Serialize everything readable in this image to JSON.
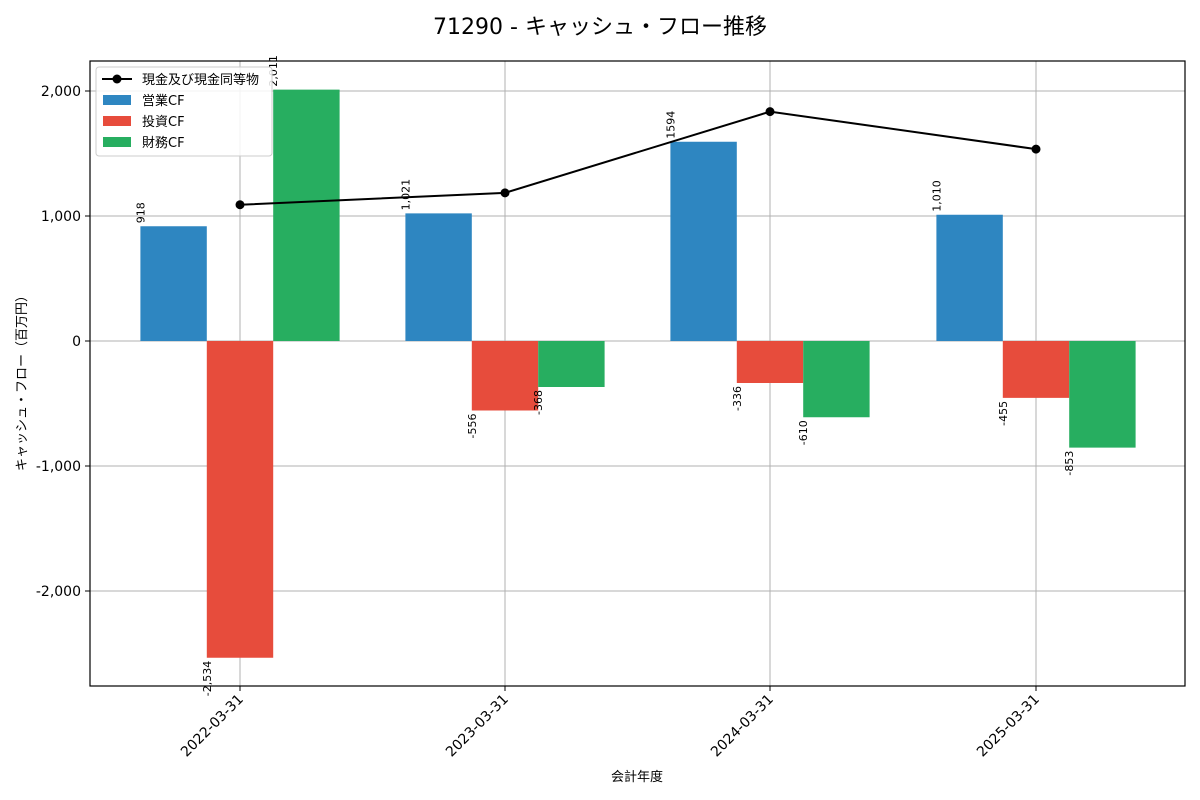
{
  "chart_data": {
    "type": "bar",
    "title": "71290 - キャッシュ・フロー推移",
    "xlabel": "会計年度",
    "ylabel": "キャッシュ・フロー（百万円）",
    "categories": [
      "2022-03-31",
      "2023-03-31",
      "2024-03-31",
      "2025-03-31"
    ],
    "series": [
      {
        "name": "営業CF",
        "kind": "bar",
        "color": "#2e86c1",
        "values": [
          918,
          1021,
          1594,
          1010
        ],
        "labels": [
          "918",
          "1,021",
          "1594",
          "1,010"
        ]
      },
      {
        "name": "投資CF",
        "kind": "bar",
        "color": "#e74c3c",
        "values": [
          -2534,
          -556,
          -336,
          -455
        ],
        "labels": [
          "-2,534",
          "-556",
          "-336",
          "-455"
        ]
      },
      {
        "name": "財務CF",
        "kind": "bar",
        "color": "#27ae60",
        "values": [
          2011,
          -368,
          -610,
          -853
        ],
        "labels": [
          "2,011",
          "-368",
          "-610",
          "-853"
        ]
      },
      {
        "name": "現金及び現金同等物",
        "kind": "line",
        "color": "#000000",
        "values": [
          1090,
          1185,
          1835,
          1535
        ]
      }
    ],
    "yticks": [
      -2000,
      -1000,
      0,
      1000,
      2000
    ],
    "ytick_labels": [
      "-2,000",
      "-1,000",
      "0",
      "1,000",
      "2,000"
    ],
    "ylim": [
      -2760,
      2240
    ],
    "grid": true,
    "legend_position": "top-left"
  }
}
